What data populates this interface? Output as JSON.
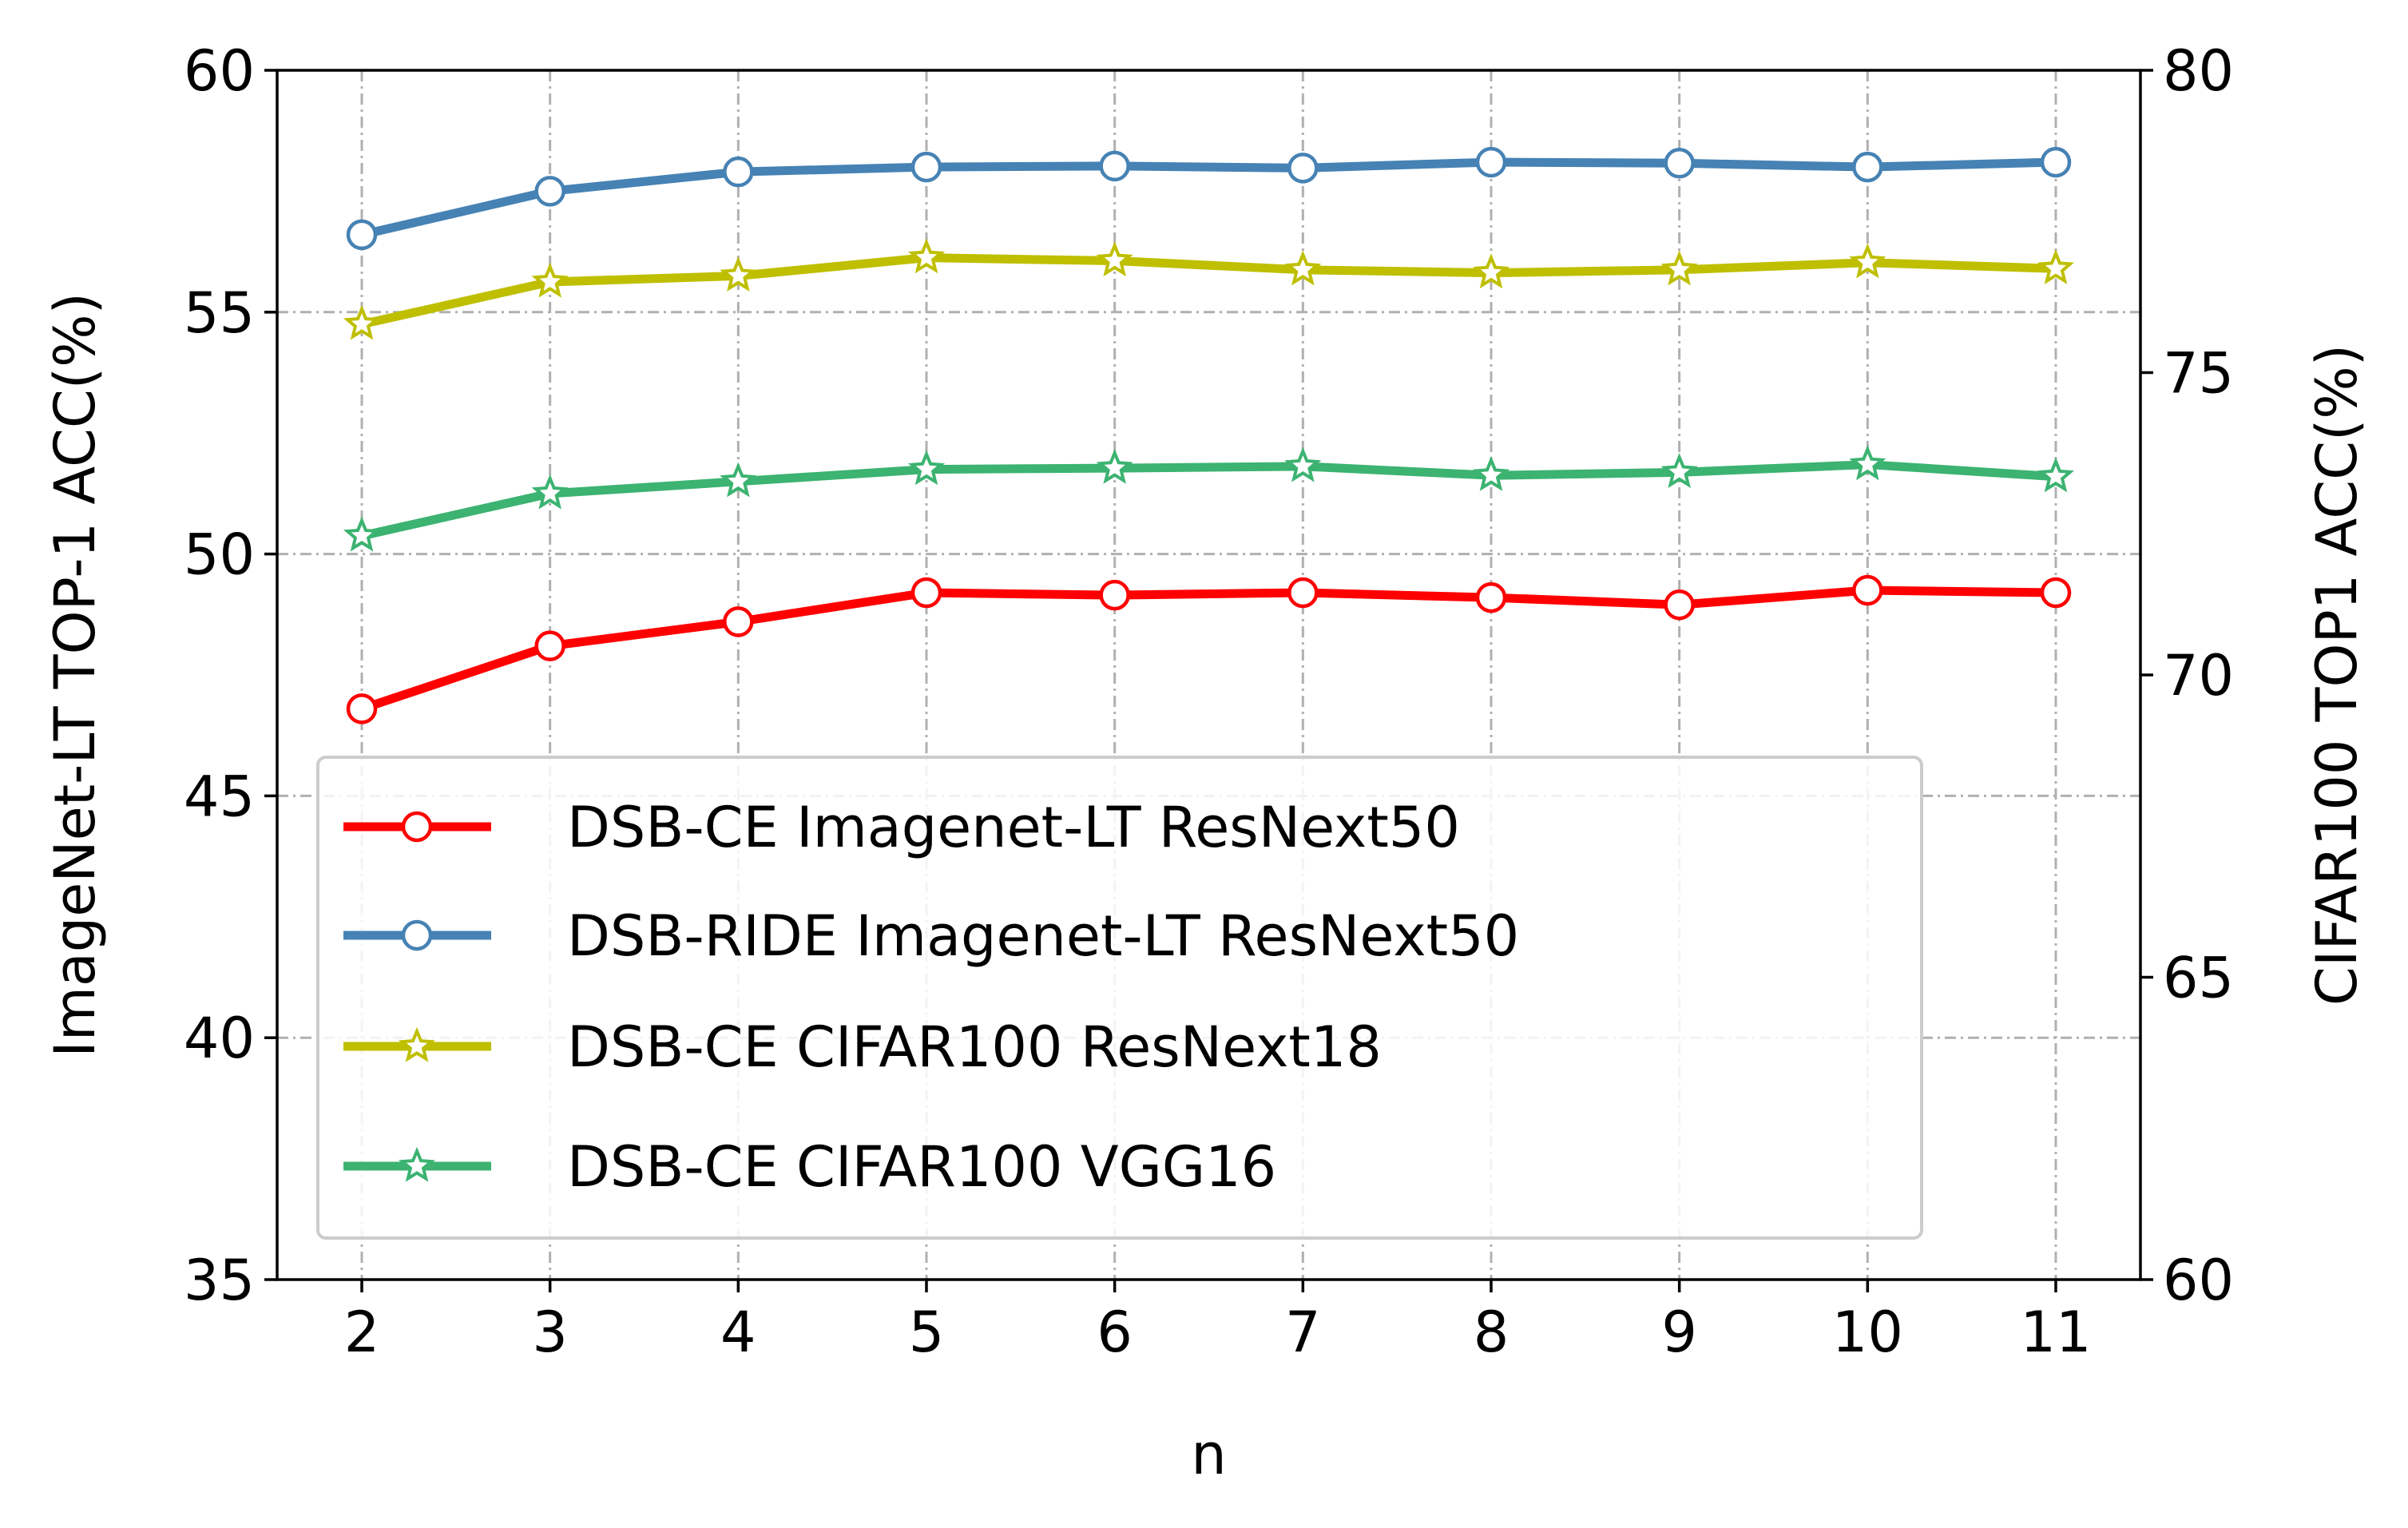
{
  "chart_data": {
    "type": "line",
    "xlabel": "n",
    "ylabel_left": "ImageNet-LT  TOP-1 ACC(%)",
    "ylabel_right": "CIFAR100  TOP1 ACC(%)",
    "x": [
      2,
      3,
      4,
      5,
      6,
      7,
      8,
      9,
      10,
      11
    ],
    "x_tick_labels": [
      "2",
      "3",
      "4",
      "5",
      "6",
      "7",
      "8",
      "9",
      "10",
      "11"
    ],
    "ylim_left": [
      35,
      60
    ],
    "ylim_right": [
      60,
      80
    ],
    "y_ticks_left": [
      "35",
      "40",
      "45",
      "50",
      "55",
      "60"
    ],
    "y_ticks_right": [
      "60",
      "65",
      "70",
      "75",
      "80"
    ],
    "grid": true,
    "legend_position": "lower-left",
    "series": [
      {
        "name": "DSB-CE Imagenet-LT ResNext50",
        "axis": "left",
        "marker": "circle",
        "color": "#ff0000",
        "values": [
          46.8,
          48.1,
          48.6,
          49.2,
          49.15,
          49.2,
          49.1,
          48.95,
          49.25,
          49.2
        ]
      },
      {
        "name": "DSB-RIDE Imagenet-LT ResNext50",
        "axis": "left",
        "marker": "circle",
        "color": "#4682b4",
        "values": [
          56.6,
          57.5,
          57.9,
          58.0,
          58.02,
          57.98,
          58.1,
          58.08,
          58.0,
          58.1
        ]
      },
      {
        "name": "DSB-CE CIFAR100 ResNext18",
        "axis": "right",
        "marker": "star",
        "color": "#bfbf00",
        "values": [
          75.8,
          76.5,
          76.6,
          76.9,
          76.85,
          76.7,
          76.65,
          76.7,
          76.82,
          76.72
        ]
      },
      {
        "name": "DSB-CE CIFAR100 VGG16",
        "axis": "right",
        "marker": "star",
        "color": "#3cb371",
        "values": [
          72.3,
          73.0,
          73.2,
          73.4,
          73.42,
          73.45,
          73.3,
          73.35,
          73.48,
          73.28
        ]
      }
    ]
  }
}
